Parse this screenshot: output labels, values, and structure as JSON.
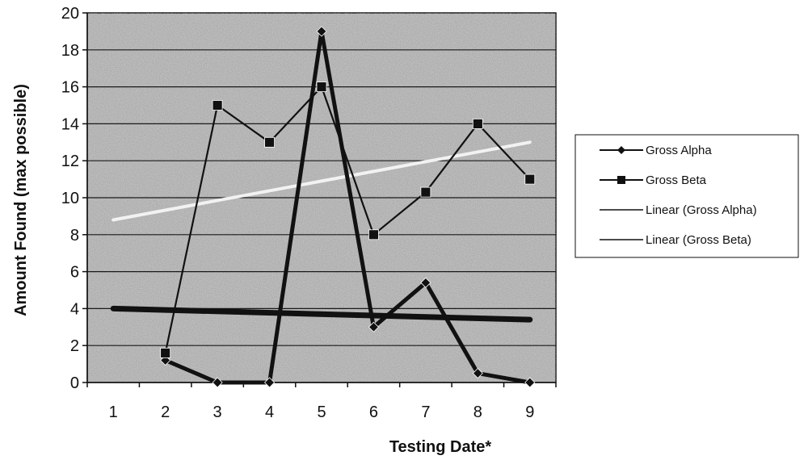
{
  "chart_data": {
    "type": "line",
    "xlabel": "Testing Date*",
    "ylabel": "Amount Found (max possible)",
    "x_ticks": [
      "1",
      "2",
      "3",
      "4",
      "5",
      "6",
      "7",
      "8",
      "9"
    ],
    "y_ticks": [
      "0",
      "2",
      "4",
      "6",
      "8",
      "10",
      "12",
      "14",
      "16",
      "18",
      "20"
    ],
    "xlim": [
      0.5,
      9.5
    ],
    "ylim": [
      0,
      20
    ],
    "grid": "horizontal",
    "legend_position": "right",
    "series": [
      {
        "name": "Gross Alpha",
        "marker": "diamond",
        "color": "#111111",
        "x": [
          2,
          3,
          4,
          5,
          6,
          7,
          8,
          9
        ],
        "values": [
          1.2,
          0,
          0,
          19,
          3,
          5.4,
          0.5,
          0
        ]
      },
      {
        "name": "Gross Beta",
        "marker": "square",
        "color": "#111111",
        "x": [
          2,
          3,
          4,
          5,
          6,
          7,
          8,
          9
        ],
        "values": [
          1.6,
          15,
          13,
          16,
          8,
          10.3,
          14,
          11
        ]
      }
    ],
    "trendlines": [
      {
        "name": "Linear (Gross Alpha)",
        "color": "#111111",
        "x": [
          1,
          9
        ],
        "values": [
          4.0,
          3.4
        ]
      },
      {
        "name": "Linear (Gross Beta)",
        "color": "#f2f2f2",
        "x": [
          1,
          9
        ],
        "values": [
          8.8,
          13.0
        ]
      }
    ]
  }
}
